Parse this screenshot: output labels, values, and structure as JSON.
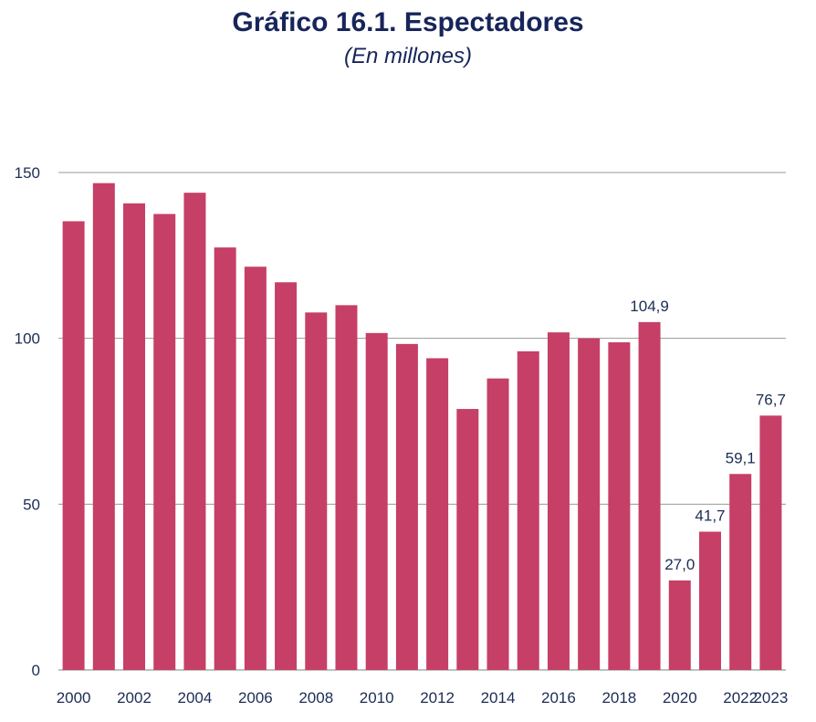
{
  "title": "Gráfico 16.1. Espectadores",
  "subtitle": "(En millones)",
  "colors": {
    "bar": "#c63f66",
    "grid": "#9a9a9a",
    "text": "#17255a"
  },
  "chart_data": {
    "type": "bar",
    "title": "Gráfico 16.1. Espectadores",
    "subtitle": "(En millones)",
    "categories": [
      "2000",
      "2001",
      "2002",
      "2003",
      "2004",
      "2005",
      "2006",
      "2007",
      "2008",
      "2009",
      "2010",
      "2011",
      "2012",
      "2013",
      "2014",
      "2015",
      "2016",
      "2017",
      "2018",
      "2019",
      "2020",
      "2021",
      "2022",
      "2023"
    ],
    "x_tick_labels": [
      "2000",
      "2002",
      "2004",
      "2006",
      "2008",
      "2010",
      "2012",
      "2014",
      "2016",
      "2018",
      "2020",
      "2022",
      "2023"
    ],
    "values": [
      135.3,
      146.8,
      140.7,
      137.5,
      143.9,
      127.4,
      121.6,
      116.9,
      107.8,
      110.0,
      101.6,
      98.3,
      94.0,
      78.7,
      87.9,
      96.1,
      101.8,
      100.0,
      98.8,
      104.9,
      27.0,
      41.7,
      59.1,
      76.7
    ],
    "data_labels": [
      {
        "category": "2019",
        "text": "104,9"
      },
      {
        "category": "2020",
        "text": "27,0"
      },
      {
        "category": "2021",
        "text": "41,7"
      },
      {
        "category": "2022",
        "text": "59,1"
      },
      {
        "category": "2023",
        "text": "76,7"
      }
    ],
    "y_ticks": [
      0,
      50,
      100,
      150
    ],
    "ylim": [
      0,
      150
    ],
    "grid": true,
    "xlabel": "",
    "ylabel": ""
  }
}
